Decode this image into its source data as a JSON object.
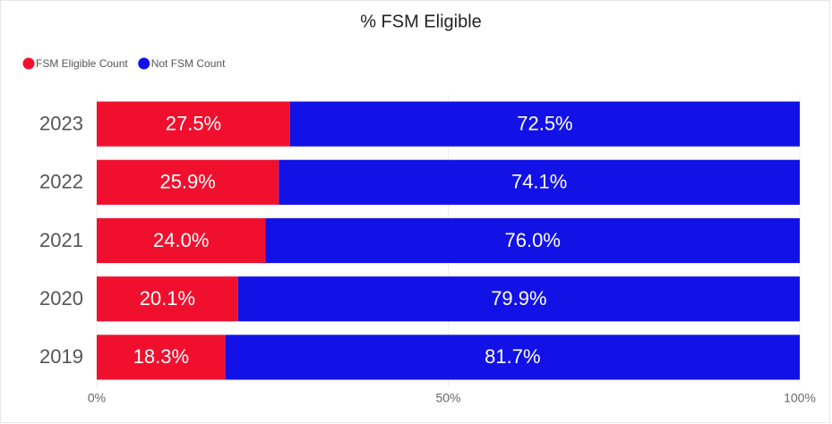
{
  "chart_data": {
    "type": "stacked_barh",
    "title": "% FSM Eligible",
    "categories": [
      "2023",
      "2022",
      "2021",
      "2020",
      "2019"
    ],
    "series": [
      {
        "name": "FSM Eligible Count",
        "color": "#f0102e",
        "values": [
          27.5,
          25.9,
          24.0,
          20.1,
          18.3
        ],
        "value_labels": [
          "27.5%",
          "25.9%",
          "24.0%",
          "20.1%",
          "18.3%"
        ]
      },
      {
        "name": "Not FSM Count",
        "color": "#1212e6",
        "values": [
          72.5,
          74.1,
          76.0,
          79.9,
          81.7
        ],
        "value_labels": [
          "72.5%",
          "74.1%",
          "76.0%",
          "79.9%",
          "81.7%"
        ]
      }
    ],
    "xlim": [
      0,
      100
    ],
    "xticks": [
      {
        "value": 0,
        "label": "0%"
      },
      {
        "value": 50,
        "label": "50%"
      },
      {
        "value": 100,
        "label": "100%"
      }
    ],
    "grid": true,
    "legend": "top-left"
  }
}
